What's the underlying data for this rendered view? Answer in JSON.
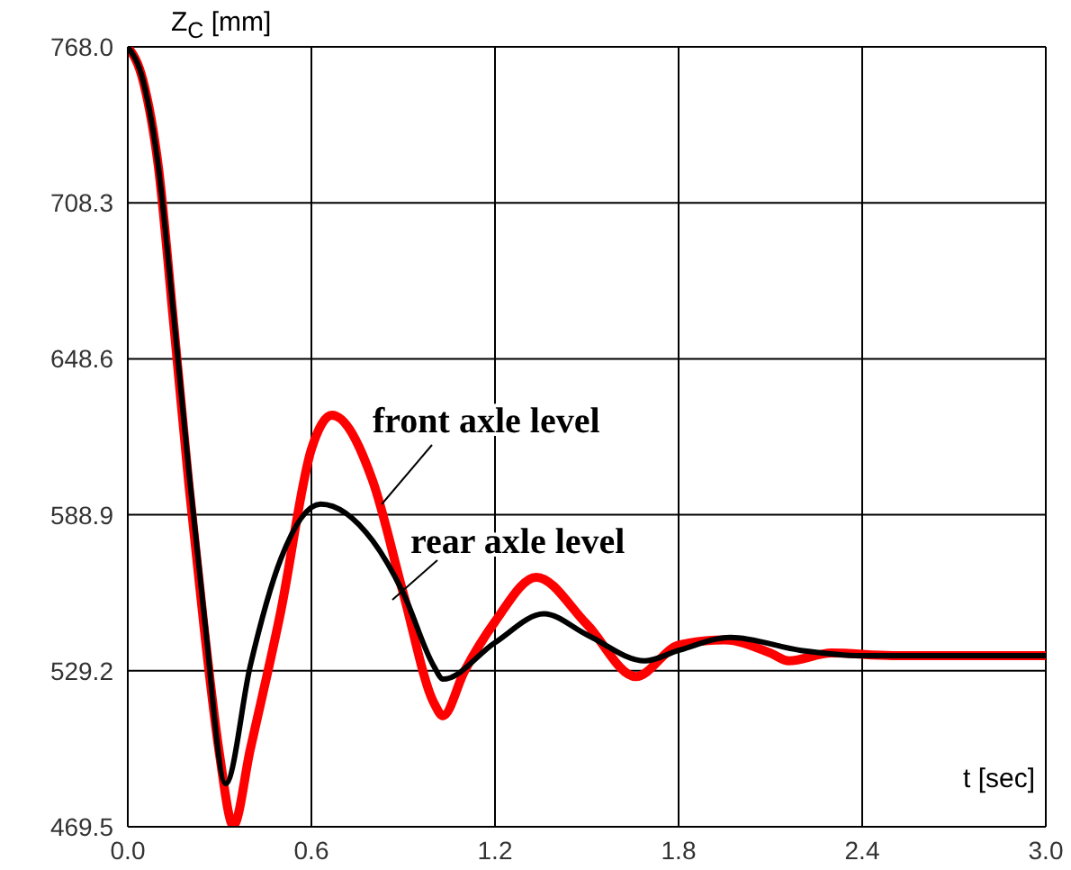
{
  "chart_data": {
    "type": "line",
    "xlabel": "t [sec]",
    "ylabel": "Z$_{C}$ [mm]",
    "xlim": [
      0,
      3
    ],
    "xticks": [
      {
        "value": 0,
        "label": "0.0"
      },
      0.6,
      1.2,
      1.8,
      2.4,
      {
        "value": 3,
        "label": "3.0"
      }
    ],
    "ylim": [
      469.5,
      768
    ],
    "yticks": [
      469.5,
      529.2,
      588.9,
      648.6,
      708.3,
      {
        "value": 768,
        "label": "768.0"
      }
    ],
    "grid": true,
    "line_style": "solid",
    "marker": "none",
    "series": [
      {
        "name": "front axle level",
        "color": "#ff0000",
        "x": [
          0,
          0.05,
          0.1,
          0.15,
          0.2,
          0.25,
          0.3,
          0.345,
          0.4,
          0.5,
          0.6,
          0.667,
          0.8,
          0.9,
          1.0,
          1.03,
          1.1,
          1.2,
          1.335,
          1.5,
          1.66,
          1.8,
          1.95,
          2.1,
          2.16,
          2.3,
          2.5,
          3.0
        ],
        "values": [
          768,
          755,
          722,
          662,
          600,
          545,
          497,
          470,
          499,
          552,
          614,
          627,
          602,
          559,
          517,
          512,
          529,
          548,
          565,
          547,
          527,
          539,
          541,
          536,
          533,
          536,
          535,
          535
        ]
      },
      {
        "name": "rear axle level",
        "color": "#000000",
        "x": [
          0,
          0.05,
          0.1,
          0.15,
          0.2,
          0.25,
          0.32,
          0.4,
          0.5,
          0.63,
          0.8,
          0.9,
          1.0,
          1.03,
          1.2,
          1.36,
          1.5,
          1.69,
          1.8,
          1.97,
          2.2,
          2.4,
          3.0
        ],
        "values": [
          768,
          755,
          722,
          665,
          605,
          550,
          486,
          531,
          572,
          593,
          579,
          559,
          531,
          526,
          540,
          551,
          543,
          533,
          537,
          542,
          537,
          535,
          535
        ]
      }
    ]
  }
}
